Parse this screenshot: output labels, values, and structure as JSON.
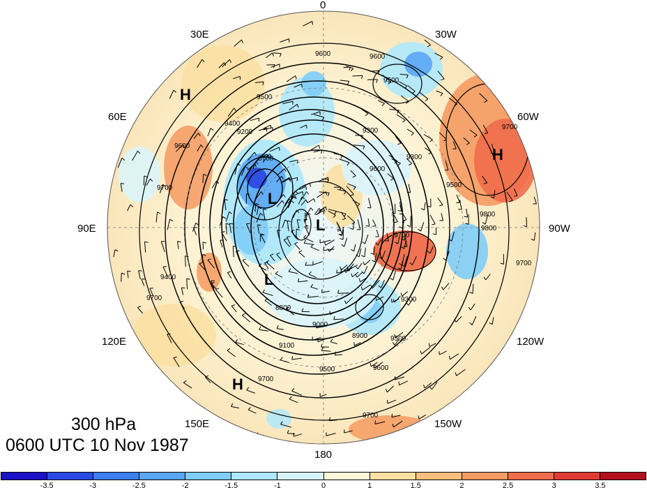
{
  "title": {
    "level": "300 hPa",
    "datetime": "0600 UTC 10 Nov 1987"
  },
  "map": {
    "projection": "polar-stereographic-north",
    "longitude_labels": [
      {
        "text": "0",
        "pos": "top"
      },
      {
        "text": "30W",
        "pos": "top-right-upper"
      },
      {
        "text": "60W",
        "pos": "right-upper"
      },
      {
        "text": "90W",
        "pos": "right"
      },
      {
        "text": "120W",
        "pos": "right-lower"
      },
      {
        "text": "150W",
        "pos": "bottom-right-lower"
      },
      {
        "text": "180",
        "pos": "bottom"
      },
      {
        "text": "150E",
        "pos": "bottom-left-lower"
      },
      {
        "text": "120E",
        "pos": "left-lower"
      },
      {
        "text": "90E",
        "pos": "left"
      },
      {
        "text": "60E",
        "pos": "left-upper"
      },
      {
        "text": "30E",
        "pos": "top-left-upper"
      }
    ],
    "pressure_centers": [
      {
        "type": "H",
        "id": "h-europe"
      },
      {
        "type": "H",
        "id": "h-atlantic"
      },
      {
        "type": "H",
        "id": "h-pacific"
      },
      {
        "type": "L",
        "id": "l-siberia"
      },
      {
        "type": "L",
        "id": "l-pole"
      },
      {
        "type": "L",
        "id": "l-east-siberia"
      }
    ],
    "contour_labels": [
      "9600",
      "9600",
      "9500",
      "9500",
      "9400",
      "9200",
      "9300",
      "8700",
      "9600",
      "9700",
      "9800",
      "9700",
      "9500",
      "9100",
      "8900",
      "9000",
      "8800",
      "9300",
      "9500",
      "9600",
      "9700",
      "9700",
      "9700",
      "9400",
      "9700",
      "9300",
      "9500",
      "9600",
      "9700",
      "9800"
    ],
    "contour_interval_units": "geopotential metres"
  },
  "colorbar": {
    "colors": [
      "#1d11c9",
      "#2a4ae3",
      "#3b7ff0",
      "#5aa6f4",
      "#7fcdf7",
      "#aee8fb",
      "#d8f4fc",
      "#fff8d8",
      "#fbe0a3",
      "#f9bf7e",
      "#f59a62",
      "#ef6d4c",
      "#e03c35",
      "#b3101e"
    ],
    "tick_labels": [
      "-3.5",
      "-3",
      "-2.5",
      "-2",
      "-1.5",
      "-1",
      "0",
      "1",
      "1.5",
      "2",
      "2.5",
      "3",
      "3.5"
    ]
  }
}
